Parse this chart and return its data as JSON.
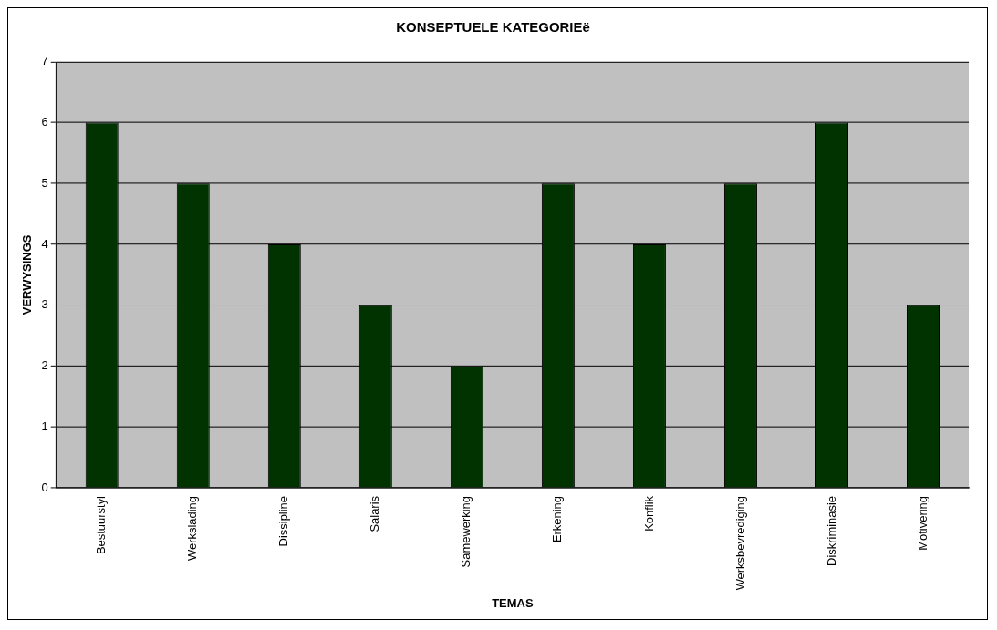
{
  "chart_data": {
    "type": "bar",
    "title": "KONSEPTUELE KATEGORIEë",
    "xlabel": "TEMAS",
    "ylabel": "VERWYSINGS",
    "categories": [
      "Bestuurstyl",
      "Werkslading",
      "Dissipline",
      "Salaris",
      "Samewerking",
      "Erkening",
      "Konflik",
      "Werksbevrediging",
      "Diskriminasie",
      "Motivering"
    ],
    "values": [
      6,
      5,
      4,
      3,
      2,
      5,
      4,
      5,
      6,
      3
    ],
    "color": "#003300",
    "ylim": [
      0,
      7
    ],
    "yticks": [
      0,
      1,
      2,
      3,
      4,
      5,
      6,
      7
    ],
    "grid": "y",
    "legend": false
  }
}
